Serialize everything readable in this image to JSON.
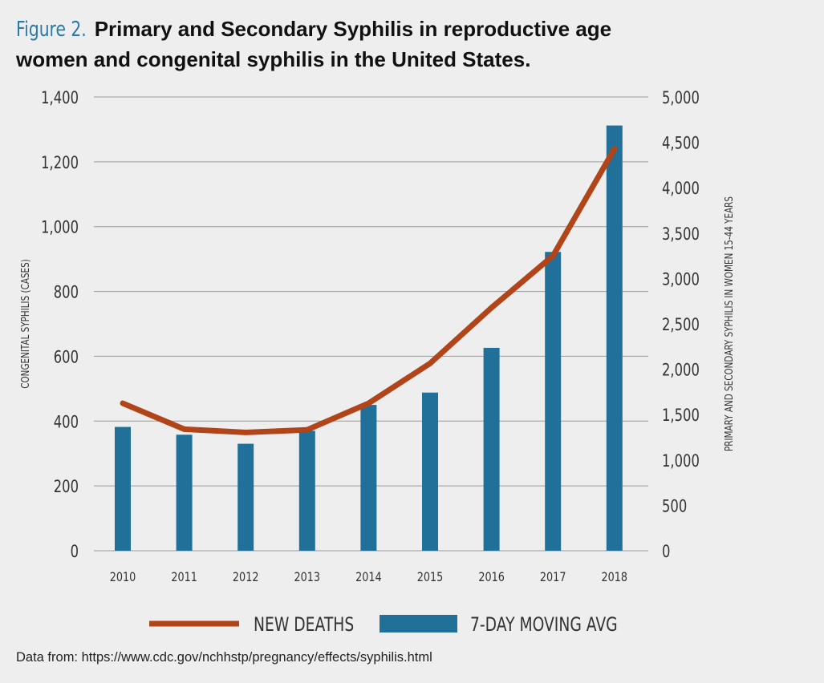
{
  "title": {
    "figure_label": "Figure 2.",
    "line1": "Primary and Secondary Syphilis in reproductive age",
    "line2": "women and congenital syphilis in the United States."
  },
  "source_note": "Data from: https://www.cdc.gov/nchhstp/pregnancy/effects/syphilis.html",
  "colors": {
    "line": "#b2441a",
    "bar": "#21709a",
    "grid": "#9a9a9a",
    "figure_label": "#2a7aa8"
  },
  "chart_data": {
    "type": "bar",
    "categories": [
      "2010",
      "2011",
      "2012",
      "2013",
      "2014",
      "2015",
      "2016",
      "2017",
      "2018"
    ],
    "left_axis": {
      "label": "CONGENITAL SYPHILIS (CASES)",
      "ticks": [
        "0",
        "200",
        "400",
        "600",
        "800",
        "1,000",
        "1,200",
        "1,400"
      ],
      "ylim": [
        0,
        1400
      ]
    },
    "right_axis": {
      "label": "PRIMARY AND SECONDARY SYPHILIS IN WOMEN 15-44 YEARS",
      "ticks": [
        "0",
        "500",
        "1,000",
        "1,500",
        "2,000",
        "2,500",
        "3,000",
        "3,500",
        "4,000",
        "4,500",
        "5,000"
      ],
      "ylim": [
        0,
        5000
      ]
    },
    "series": [
      {
        "name": "NEW DEATHS",
        "type": "line",
        "axis": "left",
        "values": [
          455,
          375,
          365,
          373,
          455,
          578,
          750,
          910,
          1240
        ]
      },
      {
        "name": "7-DAY MOVING AVG",
        "type": "bar",
        "axis": "left",
        "values": [
          382,
          358,
          330,
          370,
          450,
          488,
          626,
          922,
          1312
        ]
      }
    ],
    "legend": [
      "NEW DEATHS",
      "7-DAY MOVING AVG"
    ],
    "grid": true
  }
}
